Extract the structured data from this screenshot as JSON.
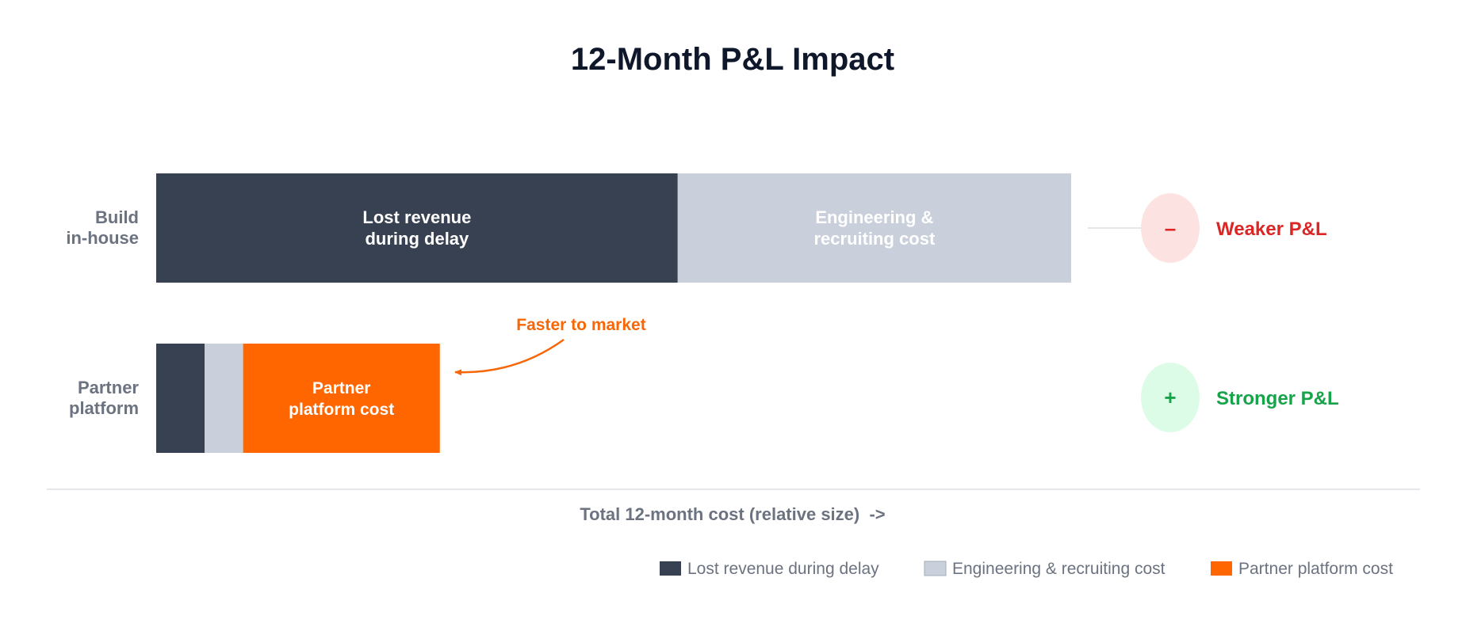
{
  "chart_data": {
    "type": "bar",
    "orientation": "horizontal",
    "stacked": true,
    "title": "12-Month P&L Impact",
    "xlabel": "Total 12-month cost (relative size)  ->",
    "ylabel": "",
    "xlim": [
      0,
      100
    ],
    "categories": [
      {
        "line1": "Build",
        "line2": "in-house"
      },
      {
        "line1": "Partner",
        "line2": "platform"
      }
    ],
    "series": [
      {
        "name": "Lost revenue during delay",
        "color": "#374151",
        "values": [
          57,
          5.3
        ]
      },
      {
        "name": "Engineering & recruiting cost",
        "color": "#c9d0db",
        "values": [
          43,
          4.2
        ]
      },
      {
        "name": "Partner platform cost",
        "color": "#ff6600",
        "values": [
          0,
          21.5
        ]
      }
    ],
    "segment_labels": [
      [
        {
          "line1": "Lost revenue",
          "line2": "during delay"
        },
        {
          "line1": "Engineering &",
          "line2": "recruiting cost"
        },
        null
      ],
      [
        null,
        null,
        {
          "line1": "Partner",
          "line2": "platform cost"
        }
      ]
    ],
    "annotation": {
      "text": "Faster to market",
      "color": "#f76707"
    },
    "impacts": [
      {
        "symbol": "–",
        "text": "Weaker P&L",
        "color": "#dc2626",
        "bg": "#fde2e2"
      },
      {
        "symbol": "+",
        "text": "Stronger P&L",
        "color": "#16a34a",
        "bg": "#dcfce7"
      }
    ],
    "legend": [
      {
        "name": "Lost revenue during delay",
        "color": "#374151"
      },
      {
        "name": "Engineering & recruiting cost",
        "color": "#c9d0db"
      },
      {
        "name": "Partner platform cost",
        "color": "#ff6600"
      }
    ],
    "legend_position": "bottom-right",
    "grid": false
  }
}
